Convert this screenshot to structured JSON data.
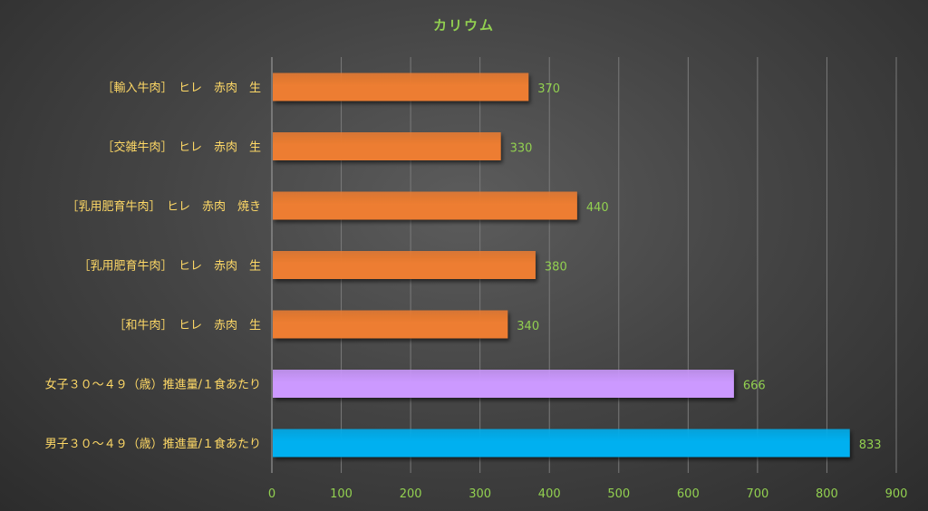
{
  "chart_data": {
    "type": "bar",
    "orientation": "horizontal",
    "title": "カリウム",
    "categories": [
      "［輸入牛肉］　ヒレ　赤肉　生",
      "［交雑牛肉］　ヒレ　赤肉　生",
      "［乳用肥育牛肉］　ヒレ　赤肉　焼き",
      "［乳用肥育牛肉］　ヒレ　赤肉　生",
      "［和牛肉］　ヒレ　赤肉　生",
      "女子３０～４９（歳）推進量/１食あたり",
      "男子３０～４９（歳）推進量/１食あたり"
    ],
    "values": [
      370,
      330,
      440,
      380,
      340,
      666,
      833
    ],
    "bar_colors": [
      "#ed7d31",
      "#ed7d31",
      "#ed7d31",
      "#ed7d31",
      "#ed7d31",
      "#cc99ff",
      "#00b0f0"
    ],
    "xlim": [
      0,
      900
    ],
    "xticks": [
      0,
      100,
      200,
      300,
      400,
      500,
      600,
      700,
      800,
      900
    ],
    "grid": true,
    "legend": "none",
    "colors": {
      "title": "#92d050",
      "category_label": "#ffd966",
      "tick_label": "#92d050",
      "data_label": "#92d050"
    }
  }
}
